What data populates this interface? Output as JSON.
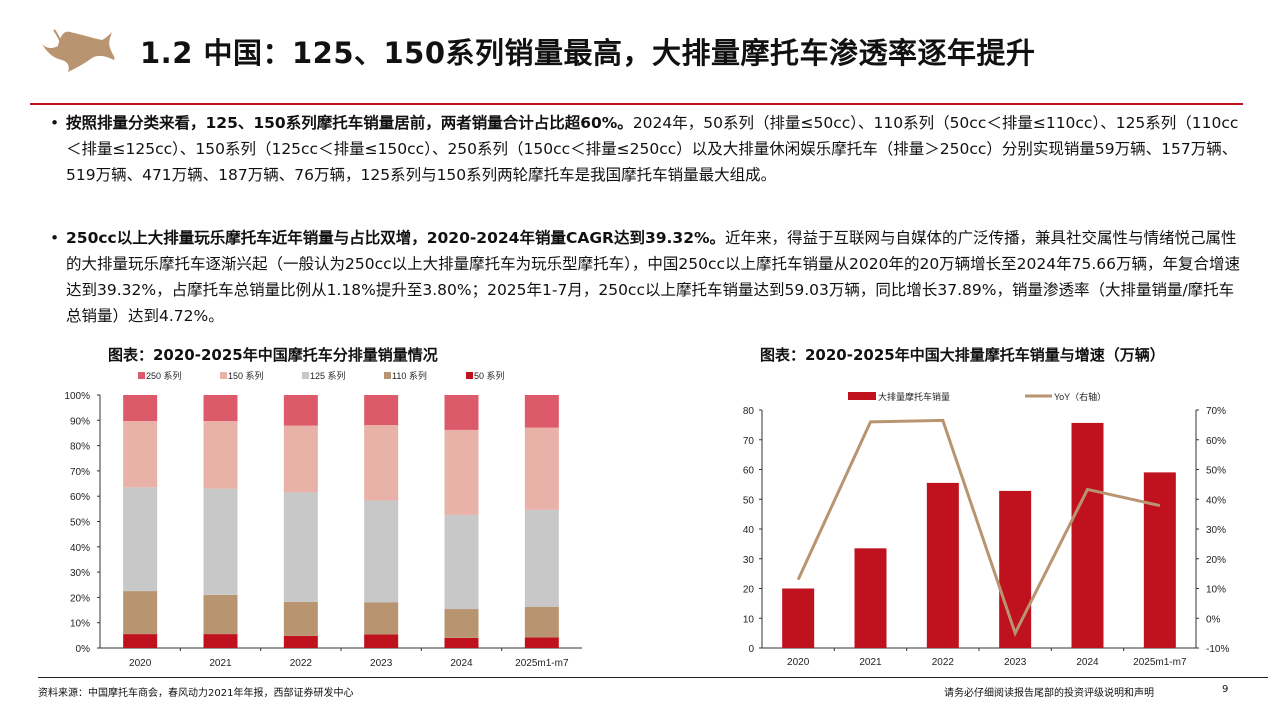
{
  "header": {
    "title": "1.2 中国：125、150系列销量最高，大排量摩托车渗透率逐年提升",
    "logo": "bull-logo",
    "accent": "#c0111f"
  },
  "bullets": [
    {
      "bold": "按照排量分类来看，125、150系列摩托车销量居前，两者销量合计占比超60%。",
      "text": "2024年，50系列（排量≤50cc）、110系列（50cc＜排量≤110cc）、125系列（110cc＜排量≤125cc）、150系列（125cc＜排量≤150cc）、250系列（150cc＜排量≤250cc）以及大排量休闲娱乐摩托车（排量＞250cc）分别实现销量59万辆、157万辆、519万辆、471万辆、187万辆、76万辆，125系列与150系列两轮摩托车是我国摩托车销量最大组成。"
    },
    {
      "bold": "250cc以上大排量玩乐摩托车近年销量与占比双增，2020-2024年销量CAGR达到39.32%。",
      "text": "近年来，得益于互联网与自媒体的广泛传播，兼具社交属性与情绪悦己属性的大排量玩乐摩托车逐渐兴起（一般认为250cc以上大排量摩托车为玩乐型摩托车），中国250cc以上摩托车销量从2020年的20万辆增长至2024年75.66万辆，年复合增速达到39.32%，占摩托车总销量比例从1.18%提升至3.80%；2025年1-7月，250cc以上摩托车销量达到59.03万辆，同比增长37.89%，销量渗透率（大排量销量/摩托车总销量）达到4.72%。"
    }
  ],
  "chart_data": [
    {
      "type": "bar",
      "stacked": true,
      "title": "图表：2020-2025年中国摩托车分排量销量情况",
      "categories": [
        "2020",
        "2021",
        "2022",
        "2023",
        "2024",
        "2025m1-m7"
      ],
      "ylim": [
        0,
        100
      ],
      "yticks": [
        "0%",
        "10%",
        "20%",
        "30%",
        "40%",
        "50%",
        "60%",
        "70%",
        "80%",
        "90%",
        "100%"
      ],
      "legend_position": "top",
      "series": [
        {
          "name": "50 系列",
          "color": "#c0111f",
          "values": [
            5.5,
            5.5,
            4.8,
            5.4,
            4.0,
            4.2
          ]
        },
        {
          "name": "110 系列",
          "color": "#b89570",
          "values": [
            17.0,
            15.5,
            13.4,
            12.7,
            11.4,
            12.0
          ]
        },
        {
          "name": "125 系列",
          "color": "#c8c8c8",
          "values": [
            41.0,
            42.0,
            43.3,
            40.2,
            37.2,
            38.4
          ]
        },
        {
          "name": "150 系列",
          "color": "#e8b2a8",
          "values": [
            26.2,
            26.7,
            26.4,
            29.8,
            33.6,
            32.5
          ]
        },
        {
          "name": "250 系列",
          "color": "#dc5a6a",
          "values": [
            10.3,
            10.3,
            12.1,
            11.9,
            13.8,
            12.9
          ]
        }
      ]
    },
    {
      "type": "bar",
      "title": "图表：2020-2025年中国大排量摩托车销量与增速（万辆）",
      "categories": [
        "2020",
        "2021",
        "2022",
        "2023",
        "2024",
        "2025m1-m7"
      ],
      "ylim": [
        0,
        80
      ],
      "yticks": [
        "0",
        "10",
        "20",
        "30",
        "40",
        "50",
        "60",
        "70",
        "80"
      ],
      "y2lim": [
        -10,
        70
      ],
      "y2ticks": [
        "-10%",
        "0%",
        "10%",
        "20%",
        "30%",
        "40%",
        "50%",
        "60%",
        "70%"
      ],
      "legend_position": "top",
      "series": [
        {
          "name": "大排量摩托车销量",
          "type": "bar",
          "axis": "left",
          "color": "#c0111f",
          "values": [
            20,
            33.5,
            55.5,
            52.8,
            75.66,
            59.03
          ]
        },
        {
          "name": "YoY（右轴）",
          "type": "line",
          "axis": "right",
          "color": "#b89570",
          "values": [
            13,
            66,
            66.5,
            -5,
            43.3,
            37.89
          ]
        }
      ]
    }
  ],
  "footer": {
    "source": "资料来源：中国摩托车商会，春风动力2021年年报，西部证券研发中心",
    "disclaimer": "请务必仔细阅读报告尾部的投资评级说明和声明",
    "page": "9"
  }
}
